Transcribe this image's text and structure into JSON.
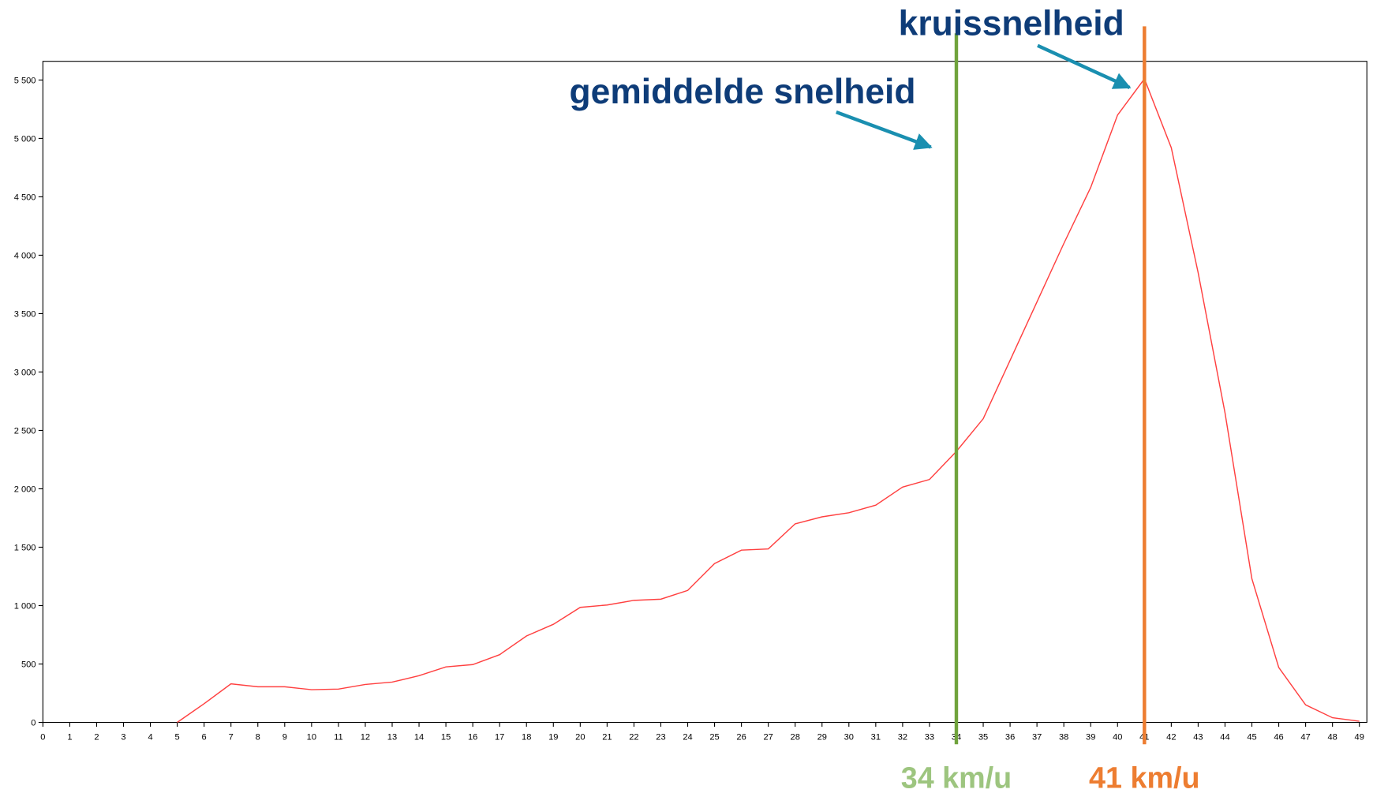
{
  "chart_data": {
    "type": "line",
    "x": [
      5,
      6,
      7,
      8,
      9,
      10,
      11,
      12,
      13,
      14,
      15,
      16,
      17,
      18,
      19,
      20,
      21,
      22,
      23,
      24,
      25,
      26,
      27,
      28,
      29,
      30,
      31,
      32,
      33,
      34,
      35,
      36,
      37,
      38,
      39,
      40,
      41,
      42,
      43,
      44,
      45,
      46,
      47,
      48,
      49
    ],
    "series": [
      {
        "name": null,
        "color": "#ff4040",
        "values": [
          0,
          160,
          330,
          305,
          305,
          280,
          285,
          325,
          345,
          400,
          475,
          495,
          580,
          740,
          840,
          985,
          1005,
          1045,
          1055,
          1130,
          1360,
          1475,
          1485,
          1700,
          1760,
          1795,
          1860,
          2015,
          2080,
          2320,
          2600,
          3100,
          3600,
          4100,
          4580,
          5200,
          5510,
          4920,
          3850,
          2650,
          1230,
          470,
          150,
          40,
          10
        ]
      }
    ],
    "xlim": [
      0,
      49.28
    ],
    "ylim": [
      0,
      5660
    ],
    "xticks": [
      0,
      1,
      2,
      3,
      4,
      5,
      6,
      7,
      8,
      9,
      10,
      11,
      12,
      13,
      14,
      15,
      16,
      17,
      18,
      19,
      20,
      21,
      22,
      23,
      24,
      25,
      26,
      27,
      28,
      29,
      30,
      31,
      32,
      33,
      34,
      35,
      36,
      37,
      38,
      39,
      40,
      41,
      42,
      43,
      44,
      45,
      46,
      47,
      48,
      49
    ],
    "yticks": [
      0,
      500,
      {
        "value": 1000,
        "label": "1 000"
      },
      {
        "value": 1500,
        "label": "1 500"
      },
      {
        "value": 2000,
        "label": "2 000"
      },
      {
        "value": 2500,
        "label": "2 500"
      },
      {
        "value": 3000,
        "label": "3 000"
      },
      {
        "value": 3500,
        "label": "3 500"
      },
      {
        "value": 4000,
        "label": "4 000"
      },
      {
        "value": 4500,
        "label": "4 500"
      },
      {
        "value": 5000,
        "label": "5 000"
      },
      {
        "value": 5500,
        "label": "5 500"
      }
    ],
    "grid": false,
    "markers": [
      {
        "label": "gemiddelde snelheid",
        "x": 34,
        "x_label": "34 km/u",
        "color": "#70a33c",
        "label_color": "#9dc57f"
      },
      {
        "label": "kruissnelheid",
        "x": 41,
        "x_label": "41 km/u",
        "color": "#ed7d31",
        "label_color": "#ed7d31"
      }
    ]
  }
}
